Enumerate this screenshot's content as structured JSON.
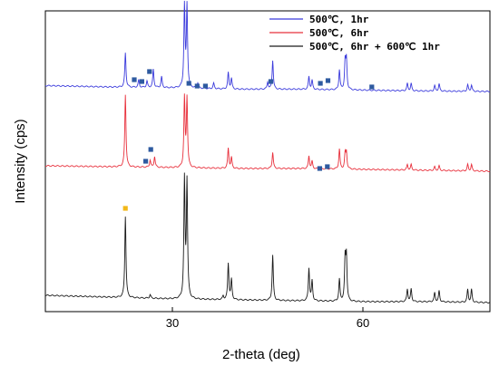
{
  "chart_data": {
    "type": "line",
    "title": "",
    "xlabel": "2-theta (deg)",
    "ylabel": "Intensity (cps)",
    "xlim": [
      10,
      80
    ],
    "x_ticks": [
      30,
      60
    ],
    "y_ticks": [],
    "grid": false,
    "legend_placement": "top-right",
    "peaks": [
      22.6,
      31.9,
      32.3,
      38.8,
      39.3,
      45.8,
      51.5,
      52.0,
      56.3,
      57.2,
      57.4,
      67.0,
      67.6,
      71.3,
      72.0,
      76.5,
      77.1
    ],
    "series": [
      {
        "name": "500℃, 1hr",
        "color": "#3b3bdc",
        "baseline": [
          [
            10,
            94.5
          ],
          [
            20,
            96
          ],
          [
            30,
            97
          ],
          [
            40,
            98.5
          ],
          [
            50,
            98.5
          ],
          [
            60,
            99.5
          ],
          [
            70,
            100.5
          ],
          [
            80,
            101
          ]
        ],
        "peak_heights": [
          38,
          90,
          90,
          18,
          12,
          32,
          14,
          10,
          22,
          30,
          32,
          8,
          8,
          6,
          8,
          7,
          7
        ],
        "extra_peaks": [
          [
            24.7,
            8
          ],
          [
            26.0,
            7
          ],
          [
            27.0,
            20
          ],
          [
            28.3,
            12
          ],
          [
            34.0,
            6
          ],
          [
            36.5,
            6
          ],
          [
            45.0,
            8
          ]
        ],
        "markers": [
          [
            24.0,
            88
          ],
          [
            25.2,
            90
          ],
          [
            26.4,
            79
          ],
          [
            32.6,
            92
          ],
          [
            33.9,
            95
          ],
          [
            35.2,
            95
          ],
          [
            45.5,
            90
          ],
          [
            53.3,
            92
          ],
          [
            54.5,
            89
          ],
          [
            61.4,
            96
          ]
        ],
        "marker_color": "#2e5aa0"
      },
      {
        "name": "500℃, 6hr",
        "color": "#e8303c",
        "baseline": [
          [
            10,
            183
          ],
          [
            20,
            184
          ],
          [
            30,
            185
          ],
          [
            40,
            186
          ],
          [
            50,
            186
          ],
          [
            60,
            187
          ],
          [
            70,
            188
          ],
          [
            80,
            189
          ]
        ],
        "peak_heights": [
          80,
          76,
          76,
          22,
          12,
          18,
          14,
          8,
          22,
          16,
          18,
          6,
          6,
          4,
          5,
          7,
          7
        ],
        "extra_peaks": [
          [
            26.5,
            8
          ],
          [
            27.2,
            12
          ]
        ],
        "markers": [
          [
            25.8,
            178
          ],
          [
            26.6,
            165
          ],
          [
            53.2,
            186
          ],
          [
            54.4,
            184
          ]
        ],
        "marker_color": "#2e5aa0"
      },
      {
        "name": "500℃, 6hr + 600℃ 1hr",
        "color": "#1a1a1a",
        "baseline": [
          [
            10,
            326
          ],
          [
            20,
            328
          ],
          [
            30,
            330
          ],
          [
            40,
            331
          ],
          [
            50,
            332
          ],
          [
            60,
            333
          ],
          [
            70,
            333
          ],
          [
            80,
            334
          ]
        ],
        "peak_heights": [
          90,
          130,
          128,
          40,
          22,
          50,
          36,
          22,
          24,
          45,
          48,
          14,
          14,
          10,
          12,
          14,
          14
        ],
        "extra_peaks": [
          [
            26.5,
            4
          ],
          [
            38.0,
            4
          ]
        ],
        "markers": [
          [
            22.6,
            230
          ]
        ],
        "marker_color": "#f2b818"
      }
    ]
  }
}
